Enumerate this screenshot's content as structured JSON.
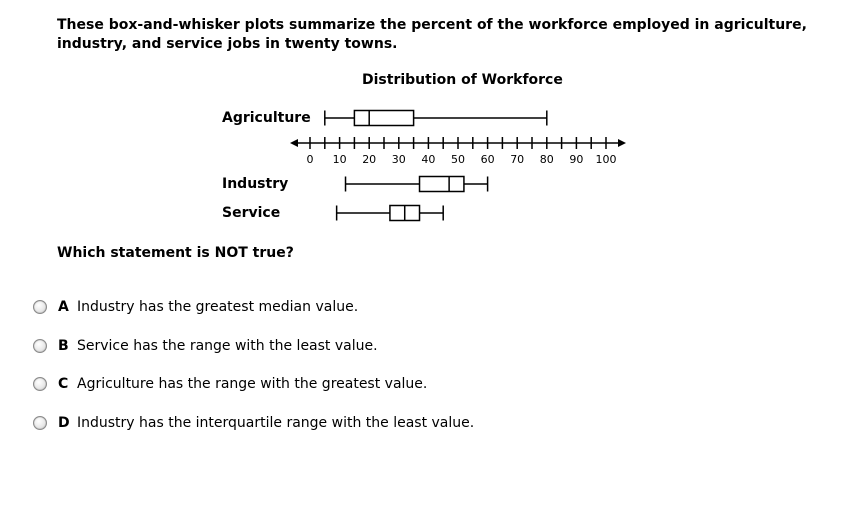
{
  "prompt": "These box-and-whisker plots summarize the percent of the workforce employed in agriculture, industry, and service jobs in twenty towns.",
  "question": "Which statement is NOT true?",
  "choices": [
    {
      "letter": "A",
      "text": "Industry has the greatest median value."
    },
    {
      "letter": "B",
      "text": "Service has the range with the least value."
    },
    {
      "letter": "C",
      "text": "Agriculture has the range with the greatest value."
    },
    {
      "letter": "D",
      "text": "Industry has the interquartile range with the least value."
    }
  ],
  "chart_data": {
    "type": "box",
    "title": "Distribution of Workforce",
    "xlabel": "",
    "ylabel": "",
    "xlim": [
      0,
      100
    ],
    "tick_step": 5,
    "tick_labels": [
      "0",
      "10",
      "20",
      "30",
      "40",
      "50",
      "60",
      "70",
      "80",
      "90",
      "100"
    ],
    "series": [
      {
        "name": "Agriculture",
        "min": 5,
        "q1": 15,
        "median": 20,
        "q3": 35,
        "max": 80
      },
      {
        "name": "Industry",
        "min": 12,
        "q1": 37,
        "median": 47,
        "q3": 52,
        "max": 60
      },
      {
        "name": "Service",
        "min": 9,
        "q1": 27,
        "median": 32,
        "q3": 37,
        "max": 45
      }
    ]
  }
}
